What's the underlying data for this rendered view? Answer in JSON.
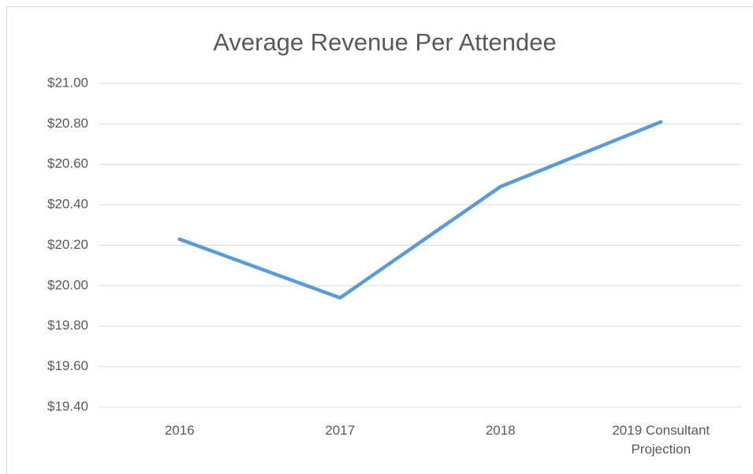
{
  "chart_data": {
    "type": "line",
    "title": "Average Revenue Per Attendee",
    "categories": [
      "2016",
      "2017",
      "2018",
      "2019 Consultant Projection"
    ],
    "series": [
      {
        "name": "Average Revenue Per Attendee",
        "color": "#5b9bd5",
        "values": [
          20.23,
          19.94,
          20.49,
          20.81
        ]
      }
    ],
    "ylim": [
      19.4,
      21.0
    ],
    "yticks": [
      {
        "value": 19.4,
        "label": "$19.40"
      },
      {
        "value": 19.6,
        "label": "$19.60"
      },
      {
        "value": 19.8,
        "label": "$19.80"
      },
      {
        "value": 20.0,
        "label": "$20.00"
      },
      {
        "value": 20.2,
        "label": "$20.20"
      },
      {
        "value": 20.4,
        "label": "$20.40"
      },
      {
        "value": 20.6,
        "label": "$20.60"
      },
      {
        "value": 20.8,
        "label": "$20.80"
      },
      {
        "value": 21.0,
        "label": "$21.00"
      }
    ],
    "grid": true
  }
}
